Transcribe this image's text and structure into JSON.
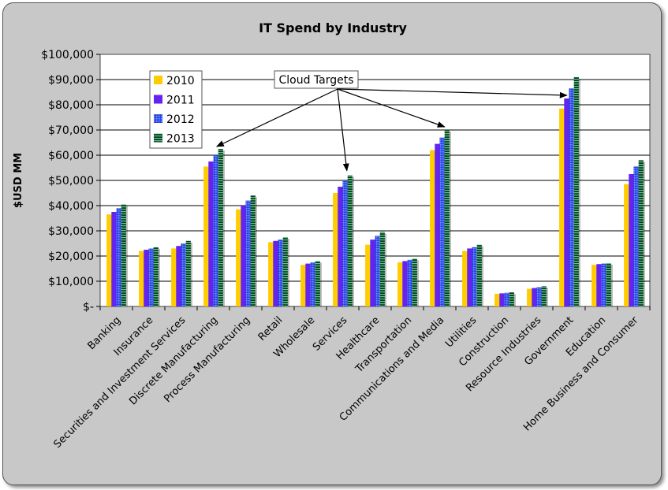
{
  "chart_data": {
    "type": "bar",
    "title": "IT Spend by Industry",
    "ylabel": "$USD MM",
    "xlabel": "",
    "ylim": [
      0,
      100000
    ],
    "yticks": [
      "$-",
      "$10,000",
      "$20,000",
      "$30,000",
      "$40,000",
      "$50,000",
      "$60,000",
      "$70,000",
      "$80,000",
      "$90,000",
      "$100,000"
    ],
    "grid": true,
    "legend_position": "top-left",
    "categories": [
      "Banking",
      "Insurance",
      "Securities and Investment Services",
      "Discrete Manufacturing",
      "Process Manufacturing",
      "Retail",
      "Wholesale",
      "Services",
      "Healthcare",
      "Transportation",
      "Communications and Media",
      "Utilities",
      "Construction",
      "Resource Industries",
      "Government",
      "Education",
      "Home Business and Consumer"
    ],
    "series": [
      {
        "name": "2010",
        "color": "#ffcc00",
        "values": [
          36500,
          22000,
          23000,
          55500,
          38500,
          25500,
          16500,
          45000,
          24500,
          17500,
          62000,
          22000,
          5000,
          7000,
          78500,
          16500,
          48500
        ]
      },
      {
        "name": "2011",
        "color": "#6622ee",
        "values": [
          37500,
          22500,
          24000,
          57500,
          40000,
          26000,
          17000,
          47500,
          26500,
          18000,
          64500,
          23000,
          5200,
          7300,
          82500,
          16800,
          52500
        ]
      },
      {
        "name": "2012",
        "color": "#3355ee",
        "values": [
          39000,
          23000,
          25000,
          60000,
          42000,
          26500,
          17500,
          50000,
          28000,
          18500,
          67000,
          23500,
          5400,
          7600,
          86500,
          17000,
          55500
        ]
      },
      {
        "name": "2013",
        "color": "#226644",
        "values": [
          40500,
          23500,
          26000,
          62500,
          44000,
          27500,
          18000,
          52000,
          29500,
          19000,
          70000,
          24500,
          5600,
          8000,
          91000,
          17200,
          58000
        ]
      }
    ],
    "annotation": {
      "text": "Cloud Targets",
      "targets": [
        "Discrete Manufacturing",
        "Services",
        "Communications and Media",
        "Government"
      ]
    }
  }
}
